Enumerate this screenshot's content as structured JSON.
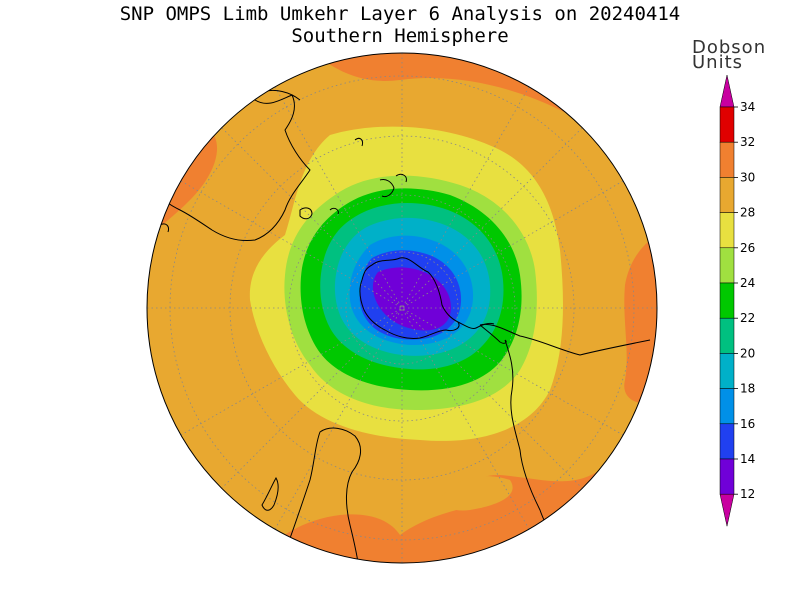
{
  "title": {
    "line1": "SNP OMPS Limb Umkehr Layer 6 Analysis on 20240414",
    "line2": "Southern Hemisphere"
  },
  "colorbar": {
    "unit_line1": "Dobson",
    "unit_line2": "Units",
    "ticks": [
      "34",
      "32",
      "30",
      "28",
      "26",
      "24",
      "22",
      "20",
      "18",
      "16",
      "14",
      "12"
    ],
    "bins": [
      {
        "range": "32-34",
        "color": "#e00000"
      },
      {
        "range": "30-32",
        "color": "#f08030"
      },
      {
        "range": "28-30",
        "color": "#e8a830"
      },
      {
        "range": "26-28",
        "color": "#e8e040"
      },
      {
        "range": "24-26",
        "color": "#a0e040"
      },
      {
        "range": "22-24",
        "color": "#00c800"
      },
      {
        "range": "20-22",
        "color": "#00c080"
      },
      {
        "range": "18-20",
        "color": "#00b0c8"
      },
      {
        "range": "16-18",
        "color": "#0090e8"
      },
      {
        "range": "14-16",
        "color": "#2040f0"
      },
      {
        "range": "12-14",
        "color": "#7000d8"
      }
    ],
    "over_color": "#c800a0",
    "under_color": "#c800a0"
  },
  "map": {
    "projection": "south-polar-stereographic",
    "background_color": "#e8a830",
    "high_ring_color": "#f08030",
    "coastline_color": "#000000",
    "grid_color": "#888888"
  }
}
